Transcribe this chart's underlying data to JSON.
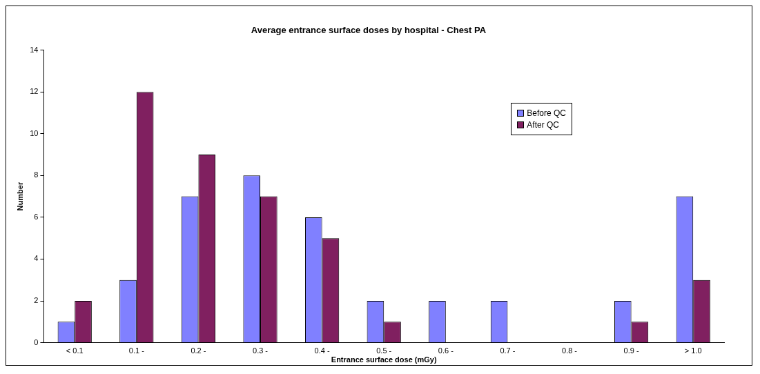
{
  "chart_data": {
    "type": "bar",
    "title": "Average entrance surface doses by hospital - Chest PA",
    "xlabel": "Entrance surface dose (mGy)",
    "ylabel": "Number",
    "categories": [
      "< 0.1",
      "0.1 -",
      "0.2 -",
      "0.3 -",
      "0.4 -",
      "0.5 -",
      "0.6 -",
      "0.7 -",
      "0.8 -",
      "0.9 -",
      "> 1.0"
    ],
    "series": [
      {
        "name": "Before QC",
        "color": "#8080ff",
        "values": [
          1,
          3,
          7,
          8,
          6,
          2,
          2,
          2,
          0,
          2,
          7
        ]
      },
      {
        "name": "After QC",
        "color": "#802060",
        "values": [
          2,
          12,
          9,
          7,
          5,
          1,
          0,
          0,
          0,
          1,
          3
        ]
      }
    ],
    "ylim": [
      0,
      14
    ],
    "yticks": [
      0,
      2,
      4,
      6,
      8,
      10,
      12,
      14
    ],
    "grid": false,
    "legend": "top right"
  }
}
